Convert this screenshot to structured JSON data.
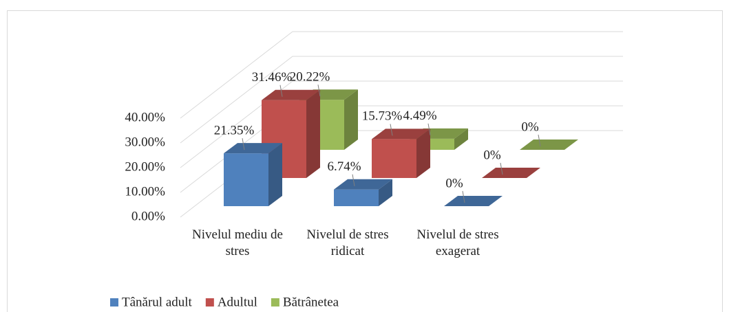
{
  "chart_data": {
    "type": "bar",
    "categories": [
      "Nivelul mediu de stres",
      "Nivelul de stres ridicat",
      "Nivelul de stres exagerat"
    ],
    "series": [
      {
        "name": "Tânărul adult",
        "color": "#4f81bd",
        "values": [
          21.35,
          6.74,
          0
        ],
        "value_labels": [
          "21.35%",
          "6.74%",
          "0%"
        ]
      },
      {
        "name": "Adultul",
        "color": "#c0504d",
        "values": [
          31.46,
          15.73,
          0
        ],
        "value_labels": [
          "31.46%",
          "15.73%",
          "0%"
        ]
      },
      {
        "name": "Bătrânetea",
        "color": "#9bbb59",
        "values": [
          20.22,
          4.49,
          0
        ],
        "value_labels": [
          "20.22%",
          "4.49%",
          "0%"
        ]
      }
    ],
    "ylim": [
      0,
      40
    ],
    "yticks": [
      {
        "value": 0,
        "label": "0.00%"
      },
      {
        "value": 10,
        "label": "10.00%"
      },
      {
        "value": 20,
        "label": "20.00%"
      },
      {
        "value": 30,
        "label": "30.00%"
      },
      {
        "value": 40,
        "label": "40.00%"
      }
    ],
    "grid": true,
    "legend": "bottom"
  }
}
